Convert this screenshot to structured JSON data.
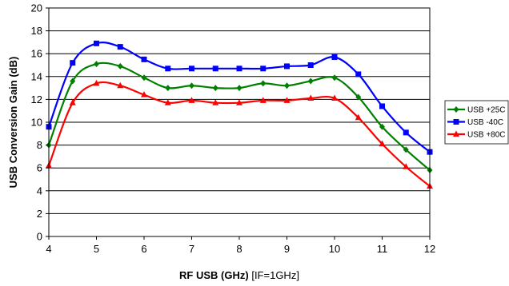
{
  "chart_data": {
    "type": "line",
    "xlabel_bold": "RF USB (GHz)",
    "xlabel_note": " [IF=1GHz]",
    "ylabel": "USB Conversion Gain (dB)",
    "xlim": [
      4,
      12
    ],
    "ylim": [
      0,
      20
    ],
    "x_ticks": [
      "4",
      "5",
      "6",
      "7",
      "8",
      "9",
      "10",
      "11",
      "12"
    ],
    "y_ticks": [
      "0",
      "2",
      "4",
      "6",
      "8",
      "10",
      "12",
      "14",
      "16",
      "18",
      "20"
    ],
    "grid": "horizontal",
    "legend_position": "right",
    "x": [
      4,
      4.5,
      5,
      5.5,
      6,
      6.5,
      7,
      7.5,
      8,
      8.5,
      9,
      9.5,
      10,
      10.5,
      11,
      11.5,
      12
    ],
    "series": [
      {
        "name": "USB +25C",
        "color": "#008000",
        "marker": "diamond",
        "values": [
          8.0,
          13.6,
          15.1,
          14.9,
          13.9,
          13.0,
          13.2,
          13.0,
          13.0,
          13.4,
          13.2,
          13.6,
          13.9,
          12.2,
          9.6,
          7.6,
          5.8
        ]
      },
      {
        "name": "USB -40C",
        "color": "#0000ff",
        "marker": "square",
        "values": [
          9.6,
          15.2,
          16.9,
          16.6,
          15.5,
          14.7,
          14.7,
          14.7,
          14.7,
          14.7,
          14.9,
          15.0,
          15.7,
          14.2,
          11.4,
          9.1,
          7.4
        ]
      },
      {
        "name": "USB +80C",
        "color": "#ff0000",
        "marker": "triangle",
        "values": [
          6.2,
          11.7,
          13.4,
          13.2,
          12.4,
          11.7,
          11.9,
          11.7,
          11.7,
          11.9,
          11.9,
          12.1,
          12.1,
          10.4,
          8.1,
          6.1,
          4.4
        ]
      }
    ]
  }
}
